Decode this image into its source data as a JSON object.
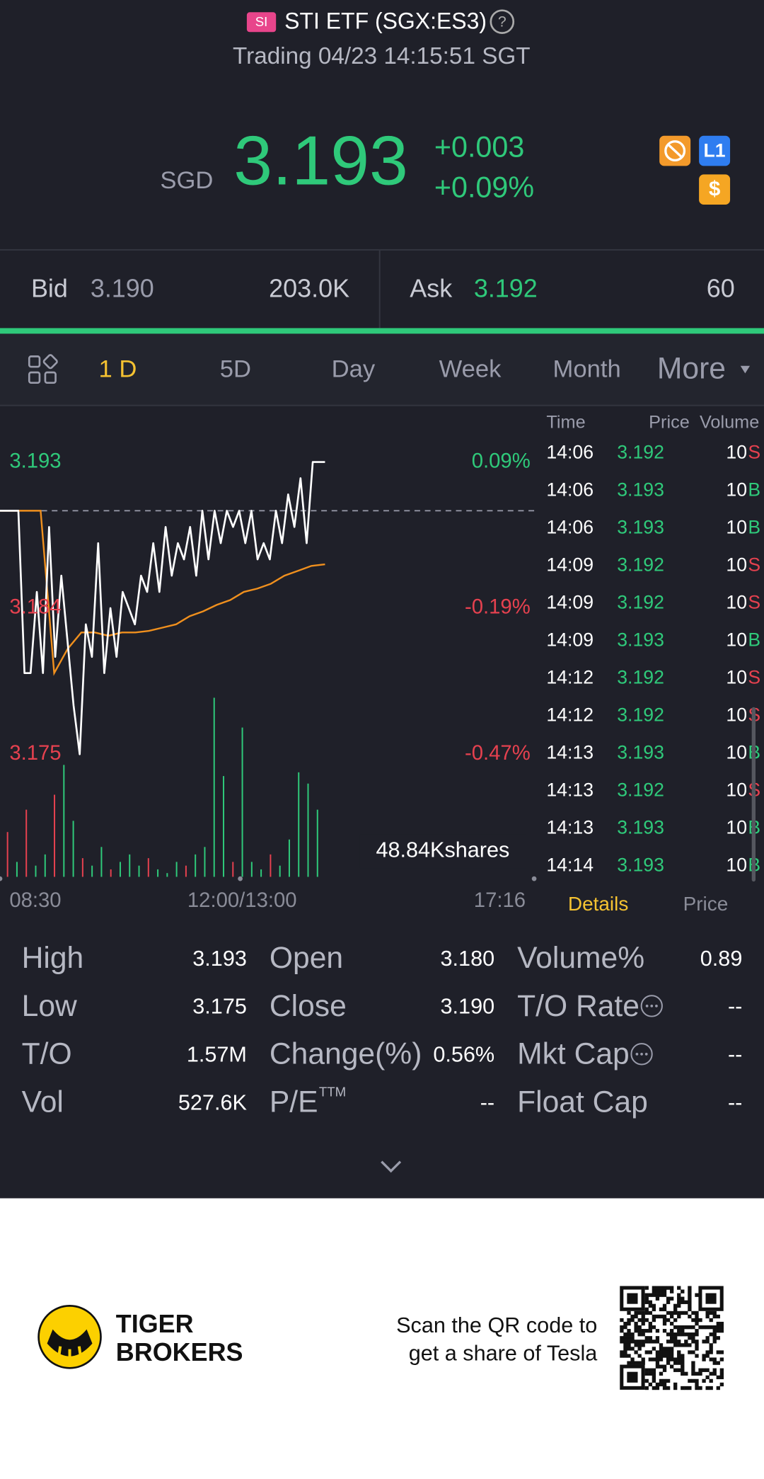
{
  "header": {
    "badge": "SI",
    "title": "STI ETF (SGX:ES3)",
    "help": "?",
    "status": "Trading 04/23 14:15:51 SGT"
  },
  "quote": {
    "currency": "SGD",
    "price": "3.193",
    "change": "+0.003",
    "change_pct": "+0.09%",
    "icons": [
      "L1",
      "$"
    ]
  },
  "orderbook": {
    "bid_label": "Bid",
    "bid": "3.190",
    "bid_size": "203.0K",
    "ask_label": "Ask",
    "ask": "3.192",
    "ask_size": "60"
  },
  "tabs": [
    "1 D",
    "5D",
    "Day",
    "Week",
    "Month",
    "More"
  ],
  "active_tab": 0,
  "chart": {
    "type": "line",
    "ylim": [
      3.175,
      3.193
    ],
    "yticks": [
      3.193,
      3.184,
      3.175
    ],
    "y2lim": [
      -0.47,
      0.09
    ],
    "y2ticks": [
      {
        "value": 0.09,
        "label": "0.09%"
      },
      {
        "value": -0.19,
        "label": "-0.19%"
      },
      {
        "value": -0.47,
        "label": "-0.47%"
      }
    ],
    "reference": 3.19,
    "xlabels": [
      "08:30",
      "12:00/13:00",
      "17:16"
    ],
    "price": {
      "color": "#ffffff",
      "values": [
        3.19,
        3.19,
        3.19,
        3.19,
        3.18,
        3.18,
        3.185,
        3.18,
        3.189,
        3.181,
        3.186,
        3.182,
        3.178,
        3.175,
        3.183,
        3.181,
        3.188,
        3.18,
        3.184,
        3.181,
        3.185,
        3.184,
        3.183,
        3.186,
        3.185,
        3.188,
        3.185,
        3.189,
        3.186,
        3.188,
        3.187,
        3.189,
        3.186,
        3.19,
        3.187,
        3.19,
        3.188,
        3.19,
        3.189,
        3.19,
        3.188,
        3.19,
        3.187,
        3.188,
        3.187,
        3.19,
        3.188,
        3.191,
        3.189,
        3.192,
        3.188,
        3.193,
        3.193,
        3.193
      ]
    },
    "average": {
      "color": "#f0901e",
      "values": [
        3.19,
        3.19,
        3.19,
        3.19,
        3.18,
        3.1815,
        3.1825,
        3.1825,
        3.1823,
        3.1825,
        3.1825,
        3.1826,
        3.1828,
        3.183,
        3.1835,
        3.1838,
        3.1842,
        3.1845,
        3.185,
        3.1852,
        3.1855,
        3.186,
        3.1863,
        3.1866,
        3.1867
      ]
    },
    "volume": {
      "values": [
        12,
        4,
        18,
        3,
        6,
        22,
        30,
        15,
        5,
        3,
        8,
        2,
        4,
        6,
        3,
        5,
        2,
        1,
        4,
        3,
        6,
        8,
        48,
        27,
        4,
        40,
        4,
        2,
        6,
        3,
        10,
        28,
        25,
        18
      ],
      "colors": [
        "#e5414f",
        "#2fc97a",
        "#e5414f",
        "#2fc97a",
        "#2fc97a",
        "#e5414f",
        "#2fc97a",
        "#2fc97a",
        "#e5414f",
        "#2fc97a",
        "#2fc97a",
        "#e5414f",
        "#2fc97a",
        "#2fc97a",
        "#2fc97a",
        "#e5414f",
        "#2fc97a",
        "#2fc97a",
        "#2fc97a",
        "#e5414f",
        "#2fc97a",
        "#2fc97a",
        "#2fc97a",
        "#2fc97a",
        "#e5414f",
        "#2fc97a",
        "#2fc97a",
        "#2fc97a",
        "#e5414f",
        "#2fc97a",
        "#2fc97a",
        "#2fc97a",
        "#2fc97a",
        "#2fc97a"
      ]
    },
    "volume_label": "48.84Kshares"
  },
  "trades": {
    "headers": [
      "Time",
      "Price",
      "Volume"
    ],
    "rows": [
      [
        "14:06",
        "3.192",
        "10",
        "S"
      ],
      [
        "14:06",
        "3.193",
        "10",
        "B"
      ],
      [
        "14:06",
        "3.193",
        "10",
        "B"
      ],
      [
        "14:09",
        "3.192",
        "10",
        "S"
      ],
      [
        "14:09",
        "3.192",
        "10",
        "S"
      ],
      [
        "14:09",
        "3.193",
        "10",
        "B"
      ],
      [
        "14:12",
        "3.192",
        "10",
        "S"
      ],
      [
        "14:12",
        "3.192",
        "10",
        "S"
      ],
      [
        "14:13",
        "3.193",
        "10",
        "B"
      ],
      [
        "14:13",
        "3.192",
        "10",
        "S"
      ],
      [
        "14:13",
        "3.193",
        "10",
        "B"
      ],
      [
        "14:14",
        "3.193",
        "10",
        "B"
      ]
    ]
  },
  "panel_tabs": [
    "Details",
    "Price"
  ],
  "stats": [
    [
      {
        "label": "High",
        "value": "3.193"
      },
      {
        "label": "Open",
        "value": "3.180"
      },
      {
        "label": "Volume%",
        "value": "0.89"
      }
    ],
    [
      {
        "label": "Low",
        "value": "3.175"
      },
      {
        "label": "Close",
        "value": "3.190"
      },
      {
        "label": "T/O Rate",
        "value": "--",
        "info": true
      }
    ],
    [
      {
        "label": "T/O",
        "value": "1.57M"
      },
      {
        "label": "Change(%)",
        "value": "0.56%"
      },
      {
        "label": "Mkt Cap",
        "value": "--",
        "info": true
      }
    ],
    [
      {
        "label": "Vol",
        "value": "527.6K"
      },
      {
        "label": "P/E",
        "sup": "TTM",
        "value": "--"
      },
      {
        "label": "Float Cap",
        "value": "--"
      }
    ]
  ],
  "footer": {
    "brand": [
      "TIGER",
      "BROKERS"
    ],
    "promo": [
      "Scan the QR code to",
      "get a share of Tesla"
    ]
  }
}
